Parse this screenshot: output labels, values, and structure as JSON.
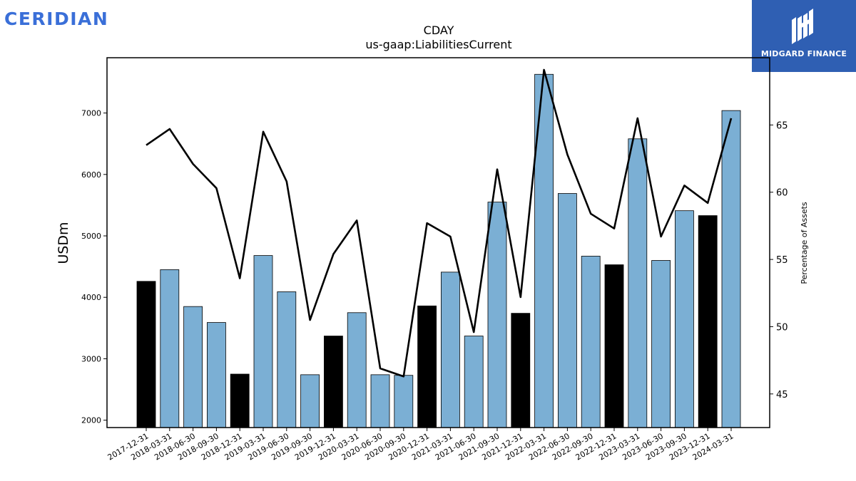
{
  "branding": {
    "left_logo_text": "CERIDIAN",
    "right_logo_text": "MIDGARD FINANCE",
    "right_logo_bg": "#2f5fb3"
  },
  "chart_data": {
    "type": "bar",
    "title": "CDAY",
    "subtitle": "us-gaap:LiabilitiesCurrent",
    "ylabel": "USDm",
    "y2label": "Percentage of Assets",
    "ylim": [
      1880,
      7900
    ],
    "y2lim": [
      42.5,
      70.0
    ],
    "yticks": [
      2000,
      3000,
      4000,
      5000,
      6000,
      7000
    ],
    "y2ticks": [
      45,
      50,
      55,
      60,
      65
    ],
    "categories": [
      "2017-12-31",
      "2018-03-31",
      "2018-06-30",
      "2018-09-30",
      "2018-12-31",
      "2019-03-31",
      "2019-06-30",
      "2019-09-30",
      "2019-12-31",
      "2020-03-31",
      "2020-06-30",
      "2020-09-30",
      "2020-12-31",
      "2021-03-31",
      "2021-06-30",
      "2021-09-30",
      "2021-12-31",
      "2022-03-31",
      "2022-06-30",
      "2022-09-30",
      "2022-12-31",
      "2023-03-31",
      "2023-06-30",
      "2023-09-30",
      "2023-12-31",
      "2024-03-31"
    ],
    "series": [
      {
        "kind": "bar",
        "values": [
          4260,
          4450,
          3850,
          3590,
          2750,
          4680,
          4090,
          2740,
          3370,
          3750,
          2740,
          2730,
          3860,
          4410,
          3370,
          5550,
          3740,
          7630,
          5690,
          4670,
          4530,
          6580,
          4600,
          5410,
          5330,
          7040
        ],
        "year_end": [
          true,
          false,
          false,
          false,
          true,
          false,
          false,
          false,
          true,
          false,
          false,
          false,
          true,
          false,
          false,
          false,
          true,
          false,
          false,
          false,
          true,
          false,
          false,
          false,
          true,
          false
        ]
      },
      {
        "kind": "line",
        "axis": "right",
        "values": [
          63.5,
          64.7,
          62.1,
          60.3,
          53.6,
          64.5,
          60.8,
          50.5,
          55.4,
          57.9,
          46.9,
          46.3,
          57.7,
          56.7,
          49.6,
          61.7,
          52.2,
          69.1,
          62.8,
          58.4,
          57.3,
          65.5,
          56.7,
          60.5,
          59.2,
          65.5
        ]
      }
    ],
    "colors": {
      "bar": "#7bafd4",
      "bar_year_end": "#000000",
      "line": "#000000"
    },
    "grid": false,
    "legend": "none"
  }
}
